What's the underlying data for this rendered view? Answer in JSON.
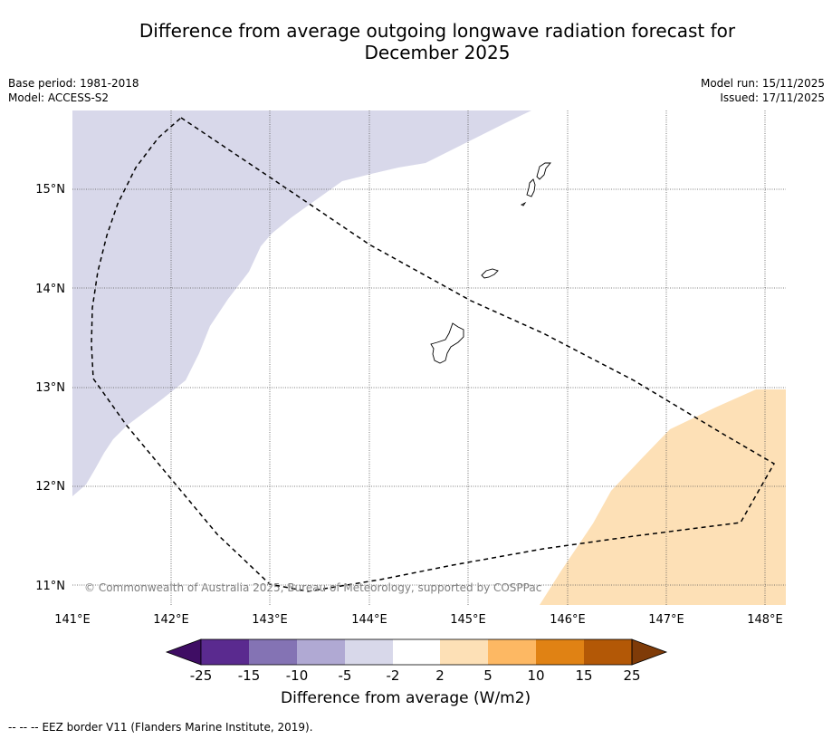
{
  "title_line1": "Difference from average outgoing longwave radiation forecast for",
  "title_line2": "December 2025",
  "base_period": "Base period: 1981-2018",
  "model": "Model: ACCESS-S2",
  "model_run": "Model run: 15/11/2025",
  "issued": "Issued: 17/11/2025",
  "copyright": "© Commonwealth of Australia 2025, Bureau of Meteorology, supported by COSPPac",
  "lat_labels": [
    "15°N",
    "14°N",
    "13°N",
    "12°N",
    "11°N"
  ],
  "lon_labels": [
    "141°E",
    "142°E",
    "143°E",
    "144°E",
    "145°E",
    "146°E",
    "147°E",
    "148°E"
  ],
  "colorbar": {
    "title": "Difference from average (W/m2)",
    "ticks": [
      "-25",
      "-15",
      "-10",
      "-5",
      "-2",
      "2",
      "5",
      "10",
      "15",
      "25"
    ],
    "colors": [
      "#3f0d64",
      "#5a2a8f",
      "#8473b4",
      "#b0a9d3",
      "#d8d8ea",
      "#ffffff",
      "#fde0b6",
      "#fdb863",
      "#e08214",
      "#b35806",
      "#7f3b08"
    ]
  },
  "legend": {
    "line_symbol": "--  --  --",
    "line_label": "EEZ border V11 (Flanders Marine Institute, 2019)."
  }
}
